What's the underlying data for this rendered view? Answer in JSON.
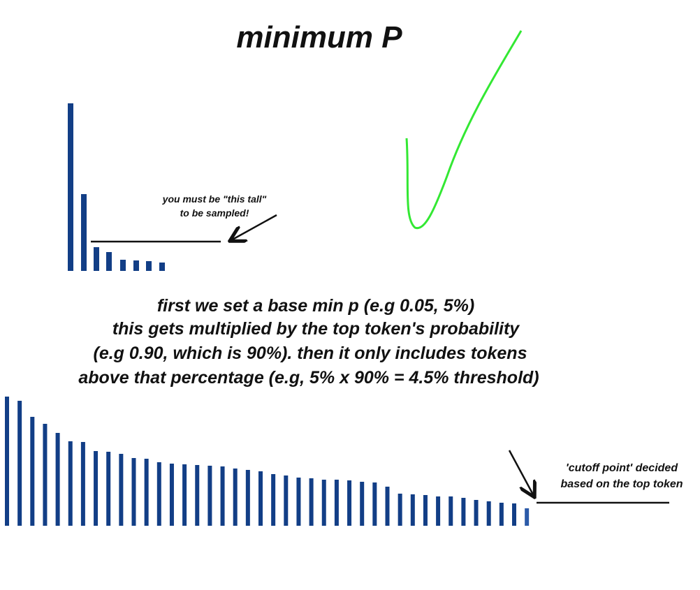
{
  "title": "minimum P",
  "top_annotation": {
    "lines": [
      "you must be \"this tall\"",
      "to be sampled!"
    ]
  },
  "body": {
    "lines": [
      "first we set a base min p (e.g 0.05, 5%)",
      "this gets multiplied by the top token's probability",
      "(e.g 0.90, which is 90%). then it only includes tokens",
      "above that percentage (e.g, 5% x 90% = 4.5% threshold)"
    ]
  },
  "bottom_annotation": {
    "lines": [
      "'cutoff point' decided",
      "based on the top token"
    ]
  }
}
